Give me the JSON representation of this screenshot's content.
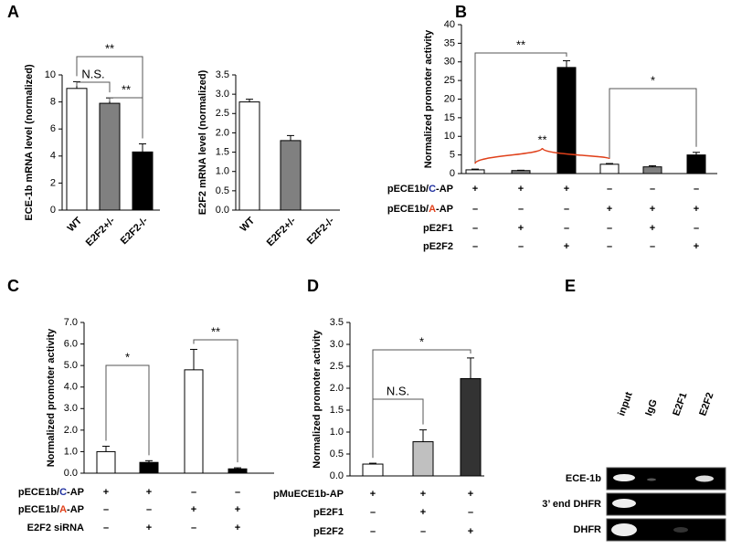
{
  "chart_data": [
    {
      "type": "bar",
      "panel": "A",
      "ylabel": "ECE-1b mRNA level (normalized)",
      "categories": [
        "WT",
        "E2F2+/-",
        "E2F2-/-"
      ],
      "values": [
        9.0,
        7.9,
        4.3
      ],
      "errors": [
        0.5,
        0.4,
        0.6
      ],
      "colors": [
        "#ffffff",
        "#808080",
        "#000000"
      ],
      "ylim": [
        0,
        10
      ],
      "yticks": [
        0,
        2,
        4,
        6,
        8,
        10
      ],
      "brackets": [
        {
          "from": 0,
          "to": 1,
          "label": "N.S."
        },
        {
          "from": 1,
          "to": 2,
          "label": "**"
        },
        {
          "from": 0,
          "to": 2,
          "label": "**"
        }
      ]
    },
    {
      "type": "bar",
      "ylabel": "E2F2 mRNA level (normalized)",
      "categories": [
        "WT",
        "E2F2+/-",
        "E2F2-/-"
      ],
      "values": [
        2.8,
        1.8,
        0
      ],
      "errors": [
        0.07,
        0.13,
        0
      ],
      "colors": [
        "#ffffff",
        "#808080",
        "#000000"
      ],
      "ylim": [
        0,
        3.5
      ],
      "yticks": [
        {
          "value": 0,
          "label": "0.0"
        },
        0.5,
        {
          "value": 1,
          "label": "1.0"
        },
        1.5,
        {
          "value": 2,
          "label": "2.0"
        },
        2.5,
        {
          "value": 3,
          "label": "3.0"
        },
        3.5
      ]
    },
    {
      "type": "bar",
      "panel": "B",
      "ylabel": "Normalized promoter activity",
      "values": [
        1.0,
        0.8,
        28.5,
        2.5,
        1.8,
        5.0
      ],
      "errors": [
        0.2,
        0.1,
        1.8,
        0.2,
        0.3,
        0.7
      ],
      "colors": [
        "#ffffff",
        "#808080",
        "#000000",
        "#ffffff",
        "#808080",
        "#000000"
      ],
      "ylim": [
        0,
        40
      ],
      "yticks": [
        0,
        5,
        10,
        15,
        20,
        25,
        30,
        35,
        40
      ],
      "conditions": [
        {
          "label_parts": [
            "pECE1b/",
            "C",
            "-AP"
          ],
          "label_colors": [
            "#000000",
            "#1f2f9f",
            "#000000"
          ],
          "marks": [
            "+",
            "+",
            "+",
            "–",
            "–",
            "–"
          ]
        },
        {
          "label_parts": [
            "pECE1b/",
            "A",
            "-AP"
          ],
          "label_colors": [
            "#000000",
            "#e0401a",
            "#000000"
          ],
          "marks": [
            "–",
            "–",
            "–",
            "+",
            "+",
            "+"
          ]
        },
        {
          "label_parts": [
            "pE2F1"
          ],
          "label_colors": [
            "#000000"
          ],
          "marks": [
            "–",
            "+",
            "–",
            "–",
            "+",
            "–"
          ]
        },
        {
          "label_parts": [
            "pE2F2"
          ],
          "label_colors": [
            "#000000"
          ],
          "marks": [
            "–",
            "–",
            "+",
            "–",
            "–",
            "+"
          ]
        }
      ],
      "brackets": [
        {
          "from": 0,
          "to": 2,
          "label": "**"
        },
        {
          "from": 3,
          "to": 5,
          "label": "*"
        },
        {
          "from": 0,
          "to": 3,
          "label": "**",
          "color": "#e0401a",
          "curly": true
        }
      ]
    },
    {
      "type": "bar",
      "panel": "C",
      "ylabel": "Normalized promoter activity",
      "values": [
        1.0,
        0.5,
        4.8,
        0.2
      ],
      "errors": [
        0.25,
        0.08,
        0.95,
        0.05
      ],
      "colors": [
        "#ffffff",
        "#000000",
        "#ffffff",
        "#000000"
      ],
      "ylim": [
        0,
        7
      ],
      "yticks": [
        {
          "value": 0,
          "label": "0.0"
        },
        {
          "value": 1,
          "label": "1.0"
        },
        {
          "value": 2,
          "label": "2.0"
        },
        {
          "value": 3,
          "label": "3.0"
        },
        {
          "value": 4,
          "label": "4.0"
        },
        {
          "value": 5,
          "label": "5.0"
        },
        {
          "value": 6,
          "label": "6.0"
        },
        {
          "value": 7,
          "label": "7.0"
        }
      ],
      "conditions": [
        {
          "label_parts": [
            "pECE1b/",
            "C",
            "-AP"
          ],
          "label_colors": [
            "#000000",
            "#1f2f9f",
            "#000000"
          ],
          "marks": [
            "+",
            "+",
            "–",
            "–"
          ]
        },
        {
          "label_parts": [
            "pECE1b/",
            "A",
            "-AP"
          ],
          "label_colors": [
            "#000000",
            "#e0401a",
            "#000000"
          ],
          "marks": [
            "–",
            "–",
            "+",
            "+"
          ]
        },
        {
          "label_parts": [
            "E2F2 siRNA"
          ],
          "label_colors": [
            "#000000"
          ],
          "marks": [
            "–",
            "+",
            "–",
            "+"
          ]
        }
      ],
      "brackets": [
        {
          "from": 0,
          "to": 1,
          "label": "*"
        },
        {
          "from": 2,
          "to": 3,
          "label": "**"
        }
      ]
    },
    {
      "type": "bar",
      "panel": "D",
      "ylabel": "Normalized promoter activity",
      "values": [
        0.27,
        0.78,
        2.22
      ],
      "errors": [
        0.02,
        0.27,
        0.47
      ],
      "colors": [
        "#ffffff",
        "#c0c0c0",
        "#333333"
      ],
      "ylim": [
        0,
        3.5
      ],
      "yticks": [
        {
          "value": 0,
          "label": "0.0"
        },
        0.5,
        {
          "value": 1,
          "label": "1.0"
        },
        1.5,
        {
          "value": 2,
          "label": "2.0"
        },
        2.5,
        {
          "value": 3,
          "label": "3.0"
        },
        3.5
      ],
      "conditions": [
        {
          "label_parts": [
            "pMuECE1b-AP"
          ],
          "label_colors": [
            "#000000"
          ],
          "marks": [
            "+",
            "+",
            "+"
          ]
        },
        {
          "label_parts": [
            "pE2F1"
          ],
          "label_colors": [
            "#000000"
          ],
          "marks": [
            "–",
            "+",
            "–"
          ]
        },
        {
          "label_parts": [
            "pE2F2"
          ],
          "label_colors": [
            "#000000"
          ],
          "marks": [
            "–",
            "–",
            "+"
          ]
        }
      ],
      "brackets": [
        {
          "from": 0,
          "to": 1,
          "label": "N.S."
        },
        {
          "from": 0,
          "to": 2,
          "label": "*"
        }
      ]
    }
  ],
  "gel": {
    "panel": "E",
    "columns": [
      "input",
      "IgG",
      "E2F1",
      "E2F2"
    ],
    "rows": [
      "ECE-1b",
      "3’ end DHFR",
      "DHFR"
    ]
  }
}
